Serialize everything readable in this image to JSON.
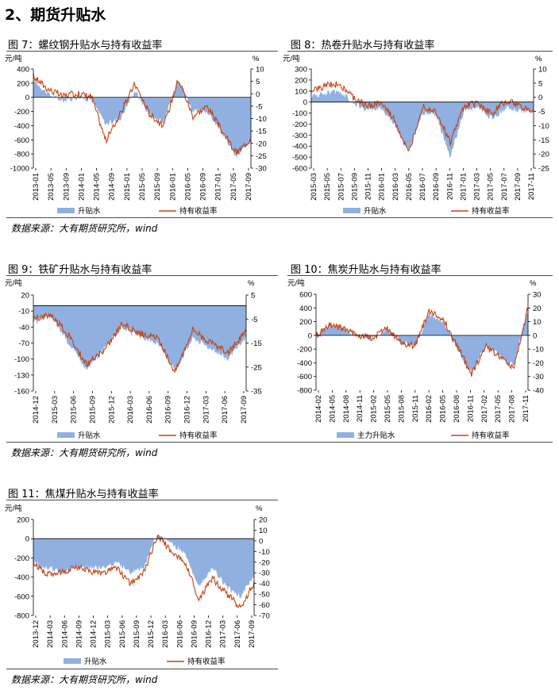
{
  "section_title": "2、期货升贴水",
  "colors": {
    "basis_fill": "#8fb0e0",
    "return_line": "#c8410d",
    "axis": "#000000",
    "rule": "#4a4a4a"
  },
  "charts": [
    {
      "id": "fig7",
      "caption": "图 7：螺纹钢升贴水与持有收益率",
      "source": "数据来源：大有期货研究所，wind",
      "left_unit": "元/吨",
      "right_unit": "%",
      "left_ticks": [
        "400",
        "200",
        "0",
        "-200",
        "-400",
        "-600",
        "-800",
        "-1000"
      ],
      "right_ticks": [
        "10",
        "5",
        "0",
        "-5",
        "-10",
        "-15",
        "-20",
        "-25",
        "-30"
      ],
      "x_ticks": [
        "2013-01",
        "2013-05",
        "2013-09",
        "2014-01",
        "2014-05",
        "2014-09",
        "2015-01",
        "2015-05",
        "2015-09",
        "2016-01",
        "2016-05",
        "2016-09",
        "2017-01",
        "2017-05",
        "2017-09"
      ],
      "legend": [
        "升贴水",
        "持有收益率"
      ]
    },
    {
      "id": "fig8",
      "caption": "图 8：热卷升贴水与持有收益率",
      "left_unit": "元/吨",
      "right_unit": "%",
      "left_ticks": [
        "300",
        "200",
        "100",
        "0",
        "-100",
        "-200",
        "-300",
        "-400",
        "-500",
        "-600"
      ],
      "right_ticks": [
        "10",
        "5",
        "0",
        "-5",
        "-10",
        "-15",
        "-20",
        "-25"
      ],
      "x_ticks": [
        "2015-03",
        "2015-05",
        "2015-07",
        "2015-09",
        "2015-11",
        "2016-01",
        "2016-03",
        "2016-05",
        "2016-07",
        "2016-09",
        "2016-11",
        "2017-01",
        "2017-03",
        "2017-05",
        "2017-07",
        "2017-09",
        "2017-11"
      ],
      "legend": [
        "升贴水",
        "持有收益率"
      ]
    },
    {
      "id": "fig9",
      "caption": "图 9：铁矿升贴水与持有收益率",
      "source": "数据来源：大有期货研究所，wind",
      "left_unit": "元/吨",
      "right_unit": "%",
      "left_ticks": [
        "20",
        "-10",
        "-40",
        "-70",
        "-100",
        "-130",
        "-160"
      ],
      "right_ticks": [
        "5",
        "-5",
        "-15",
        "-25",
        "-35"
      ],
      "x_ticks": [
        "2014-12",
        "2015-03",
        "2015-06",
        "2015-09",
        "2015-12",
        "2016-03",
        "2016-06",
        "2016-09",
        "2016-12",
        "2017-03",
        "2017-06",
        "2017-09"
      ],
      "legend": [
        "升贴水",
        "持有收益率"
      ]
    },
    {
      "id": "fig10",
      "caption": "图 10：焦炭升贴水与持有收益率",
      "left_unit": "元/吨",
      "right_unit": "%",
      "left_ticks": [
        "600",
        "400",
        "200",
        "0",
        "-200",
        "-400",
        "-600",
        "-800"
      ],
      "right_ticks": [
        "30",
        "20",
        "10",
        "0",
        "-10",
        "-20",
        "-30",
        "-40"
      ],
      "x_ticks": [
        "2014-02",
        "2014-05",
        "2014-08",
        "2014-11",
        "2015-02",
        "2015-05",
        "2015-08",
        "2015-11",
        "2016-02",
        "2016-05",
        "2016-08",
        "2016-11",
        "2017-02",
        "2017-05",
        "2017-08",
        "2017-11"
      ],
      "legend": [
        "主力升贴水",
        "持有收益率"
      ]
    },
    {
      "id": "fig11",
      "caption": "图 11：焦煤升贴水与持有收益率",
      "source": "数据来源：大有期货研究所，wind",
      "left_unit": "元/吨",
      "right_unit": "%",
      "left_ticks": [
        "200",
        "0",
        "-200",
        "-400",
        "-600",
        "-800"
      ],
      "right_ticks": [
        "20",
        "10",
        "0",
        "-10",
        "-20",
        "-30",
        "-40",
        "-50",
        "-60",
        "-70"
      ],
      "x_ticks": [
        "2013-12",
        "2014-03",
        "2014-06",
        "2014-09",
        "2014-12",
        "2015-03",
        "2015-06",
        "2015-09",
        "2015-12",
        "2016-03",
        "2016-06",
        "2016-09",
        "2016-12",
        "2017-03",
        "2017-06",
        "2017-09"
      ],
      "legend": [
        "升贴水",
        "持有收益率"
      ]
    }
  ],
  "chart_data": [
    {
      "type": "area",
      "title": "图 7：螺纹钢升贴水与持有收益率",
      "ylabel": "元/吨",
      "ylabel_right": "%",
      "ylim": [
        -1000,
        400
      ],
      "ylim_right": [
        -30,
        10
      ],
      "x": [
        "2013-01",
        "2013-05",
        "2013-09",
        "2014-01",
        "2014-05",
        "2014-09",
        "2015-01",
        "2015-05",
        "2015-09",
        "2016-01",
        "2016-05",
        "2016-09",
        "2017-01",
        "2017-05",
        "2017-09",
        "2017-11"
      ],
      "series": [
        {
          "name": "升贴水",
          "type": "area",
          "values": [
            250,
            50,
            -50,
            0,
            -30,
            -380,
            -300,
            100,
            -250,
            -350,
            280,
            -200,
            -200,
            -500,
            -850,
            -600
          ]
        },
        {
          "name": "持有收益率",
          "type": "line",
          "axis": "right",
          "values": [
            7,
            2,
            -1,
            0,
            -1,
            -19,
            -8,
            4,
            -8,
            -13,
            6,
            -9,
            -5,
            -15,
            -24,
            -18
          ]
        }
      ]
    },
    {
      "type": "area",
      "title": "图 8：热卷升贴水与持有收益率",
      "ylabel": "元/吨",
      "ylabel_right": "%",
      "ylim": [
        -600,
        300
      ],
      "ylim_right": [
        -25,
        10
      ],
      "x": [
        "2015-03",
        "2015-05",
        "2015-07",
        "2015-09",
        "2015-11",
        "2016-01",
        "2016-03",
        "2016-05",
        "2016-07",
        "2016-09",
        "2016-11",
        "2017-01",
        "2017-03",
        "2017-05",
        "2017-07",
        "2017-09",
        "2017-11"
      ],
      "series": [
        {
          "name": "升贴水",
          "type": "area",
          "values": [
            50,
            80,
            100,
            0,
            -80,
            -50,
            -200,
            -450,
            -100,
            -120,
            -500,
            -80,
            -50,
            -150,
            -50,
            -80,
            -100
          ]
        },
        {
          "name": "持有收益率",
          "type": "line",
          "axis": "right",
          "values": [
            2,
            4,
            5,
            0,
            -3,
            -2,
            -8,
            -20,
            -3,
            -5,
            -16,
            -3,
            -2,
            -6,
            -1,
            -3,
            -5
          ]
        }
      ]
    },
    {
      "type": "area",
      "title": "图 9：铁矿升贴水与持有收益率",
      "ylabel": "元/吨",
      "ylabel_right": "%",
      "ylim": [
        -160,
        20
      ],
      "ylim_right": [
        -35,
        5
      ],
      "x": [
        "2014-12",
        "2015-03",
        "2015-06",
        "2015-09",
        "2015-12",
        "2016-03",
        "2016-06",
        "2016-09",
        "2016-12",
        "2017-03",
        "2017-06",
        "2017-09",
        "2017-11"
      ],
      "series": [
        {
          "name": "升贴水",
          "type": "area",
          "values": [
            -30,
            -20,
            -70,
            -120,
            -80,
            -40,
            -60,
            -70,
            -120,
            -60,
            -80,
            -100,
            -60
          ]
        },
        {
          "name": "持有收益率",
          "type": "line",
          "axis": "right",
          "values": [
            -5,
            -3,
            -12,
            -24,
            -18,
            -7,
            -11,
            -13,
            -27,
            -9,
            -15,
            -19,
            -10
          ]
        }
      ]
    },
    {
      "type": "area",
      "title": "图 10：焦炭升贴水与持有收益率",
      "ylabel": "元/吨",
      "ylabel_right": "%",
      "ylim": [
        -800,
        600
      ],
      "ylim_right": [
        -40,
        30
      ],
      "x": [
        "2014-02",
        "2014-05",
        "2014-08",
        "2014-11",
        "2015-02",
        "2015-05",
        "2015-08",
        "2015-11",
        "2016-02",
        "2016-05",
        "2016-08",
        "2016-11",
        "2017-02",
        "2017-05",
        "2017-08",
        "2017-11"
      ],
      "series": [
        {
          "name": "主力升贴水",
          "type": "area",
          "values": [
            0,
            150,
            100,
            0,
            -50,
            100,
            -100,
            -150,
            300,
            200,
            -200,
            -550,
            -150,
            -300,
            -450,
            400
          ]
        },
        {
          "name": "持有收益率",
          "type": "line",
          "axis": "right",
          "values": [
            0,
            7,
            5,
            0,
            -2,
            5,
            -5,
            -8,
            18,
            12,
            -8,
            -28,
            -8,
            -15,
            -24,
            20
          ]
        }
      ]
    },
    {
      "type": "area",
      "title": "图 11：焦煤升贴水与持有收益率",
      "ylabel": "元/吨",
      "ylabel_right": "%",
      "ylim": [
        -800,
        200
      ],
      "ylim_right": [
        -70,
        20
      ],
      "x": [
        "2013-12",
        "2014-03",
        "2014-06",
        "2014-09",
        "2014-12",
        "2015-03",
        "2015-06",
        "2015-09",
        "2015-12",
        "2016-03",
        "2016-06",
        "2016-09",
        "2016-12",
        "2017-03",
        "2017-06",
        "2017-09",
        "2017-11"
      ],
      "series": [
        {
          "name": "升贴水",
          "type": "area",
          "values": [
            -250,
            -300,
            -350,
            -300,
            -300,
            -300,
            -250,
            -350,
            -300,
            50,
            -50,
            -150,
            -500,
            -300,
            -500,
            -600,
            -400
          ]
        },
        {
          "name": "持有收益率",
          "type": "line",
          "axis": "right",
          "values": [
            -20,
            -32,
            -30,
            -25,
            -28,
            -30,
            -25,
            -40,
            -30,
            5,
            -10,
            -20,
            -55,
            -35,
            -50,
            -62,
            -40
          ]
        }
      ]
    }
  ]
}
